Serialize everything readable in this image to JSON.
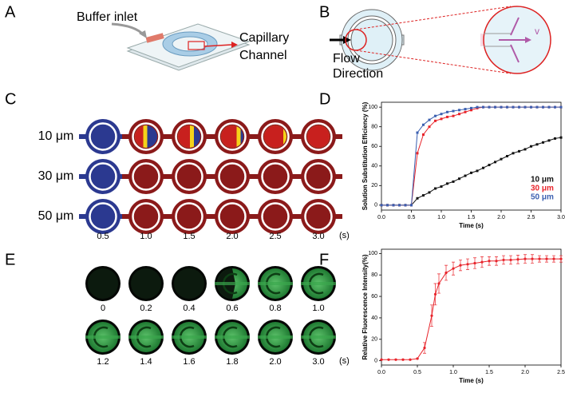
{
  "panel_labels": [
    "A",
    "B",
    "C",
    "D",
    "E",
    "F"
  ],
  "panel_a": {
    "inlet": "Buffer inlet",
    "channel": [
      "Capillary",
      "Channel"
    ]
  },
  "panel_b": {
    "flow": [
      "Flow",
      "Direction"
    ],
    "velocity": "v"
  },
  "panel_c": {
    "rows": [
      "10 μm",
      "30 μm",
      "50 μm"
    ],
    "times": [
      "0.5",
      "1.0",
      "1.5",
      "2.0",
      "2.5",
      "3.0"
    ],
    "unit": "(s)"
  },
  "panel_e": {
    "row1": [
      "0",
      "0.2",
      "0.4",
      "0.6",
      "0.8",
      "1.0"
    ],
    "row2": [
      "1.2",
      "1.4",
      "1.6",
      "1.8",
      "2.0",
      "3.0"
    ],
    "unit": "(s)"
  },
  "chart_data": [
    {
      "type": "line",
      "xlabel": "Time (s)",
      "ylabel": "Solution Substitution Efficiency (%)",
      "x": [
        0,
        0.1,
        0.2,
        0.3,
        0.4,
        0.5,
        0.6,
        0.7,
        0.8,
        0.9,
        1.0,
        1.1,
        1.2,
        1.3,
        1.4,
        1.5,
        1.6,
        1.7,
        1.8,
        1.9,
        2.0,
        2.1,
        2.2,
        2.3,
        2.4,
        2.5,
        2.6,
        2.7,
        2.8,
        2.9,
        3.0
      ],
      "series": [
        {
          "name": "10 μm",
          "color": "#111111",
          "values": [
            0,
            0,
            0,
            0,
            0,
            0,
            7,
            10,
            13,
            17,
            19,
            22,
            24,
            27,
            30,
            33,
            35,
            38,
            41,
            44,
            47,
            50,
            53,
            55,
            57,
            60,
            62,
            64,
            66,
            68,
            69
          ]
        },
        {
          "name": "30 μm",
          "color": "#e8242b",
          "values": [
            0,
            0,
            0,
            0,
            0,
            0,
            53,
            72,
            80,
            86,
            88,
            90,
            91,
            93,
            95,
            97,
            99,
            100,
            100,
            100,
            100,
            100,
            100,
            100,
            100,
            100,
            100,
            100,
            100,
            100,
            100
          ]
        },
        {
          "name": "50 μm",
          "color": "#3a5fb0",
          "values": [
            0,
            0,
            0,
            0,
            0,
            0,
            74,
            82,
            87,
            91,
            93,
            95,
            96,
            97,
            98,
            99,
            100,
            100,
            100,
            100,
            100,
            100,
            100,
            100,
            100,
            100,
            100,
            100,
            100,
            100,
            100
          ]
        }
      ],
      "legend": "lower right",
      "xlim": [
        0,
        3
      ],
      "ylim": [
        -5,
        105
      ],
      "xticks": [
        {
          "value": 0,
          "label": "0.0"
        },
        0.5,
        {
          "value": 1,
          "label": "1.0"
        },
        1.5,
        {
          "value": 2,
          "label": "2.0"
        },
        2.5,
        {
          "value": 3,
          "label": "3.0"
        }
      ],
      "yticks": [
        0,
        20,
        40,
        60,
        80,
        100
      ]
    },
    {
      "type": "line",
      "xlabel": "Time (s)",
      "ylabel": "Relative Fluorescence Intensity(%)",
      "x": [
        0,
        0.1,
        0.2,
        0.3,
        0.4,
        0.5,
        0.6,
        0.7,
        0.75,
        0.8,
        0.9,
        1.0,
        1.1,
        1.2,
        1.3,
        1.4,
        1.5,
        1.6,
        1.7,
        1.8,
        1.9,
        2.0,
        2.1,
        2.2,
        2.3,
        2.4,
        2.5
      ],
      "values": [
        1,
        1,
        1,
        1,
        1,
        2,
        12,
        42,
        62,
        72,
        82,
        86,
        89,
        90,
        91,
        92,
        93,
        93,
        94,
        94,
        94.5,
        95,
        95,
        95,
        95,
        95,
        95
      ],
      "errors": [
        0,
        0,
        0,
        0,
        0,
        0,
        5,
        10,
        10,
        9,
        7,
        6,
        5,
        5,
        5,
        5,
        4,
        4,
        4,
        4,
        4,
        4,
        4,
        3,
        3,
        3,
        3
      ],
      "color": "#e8242b",
      "xlim": [
        0,
        2.5
      ],
      "ylim": [
        -4,
        104
      ],
      "xticks": [
        {
          "value": 0,
          "label": "0.0"
        },
        0.5,
        {
          "value": 1,
          "label": "1.0"
        },
        1.5,
        {
          "value": 2,
          "label": "2.0"
        },
        2.5
      ],
      "yticks": [
        0,
        20,
        40,
        60,
        80,
        100
      ]
    }
  ]
}
